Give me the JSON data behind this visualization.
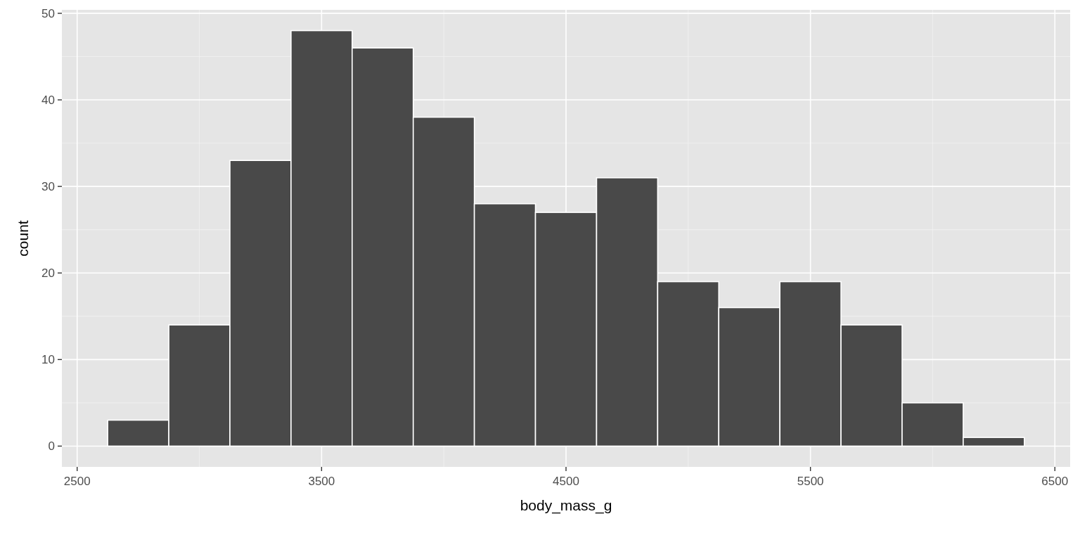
{
  "chart_data": {
    "type": "histogram",
    "xlabel": "body_mass_g",
    "ylabel": "count",
    "bins": [
      2625,
      2875,
      3125,
      3375,
      3625,
      3875,
      4125,
      4375,
      4625,
      4875,
      5125,
      5375,
      5625,
      5875,
      6125,
      6375
    ],
    "values": [
      3,
      14,
      33,
      48,
      46,
      38,
      28,
      27,
      31,
      19,
      16,
      19,
      14,
      5,
      1
    ],
    "color": "#494949",
    "xlim": [
      2437.5,
      6562.5
    ],
    "xticks": [
      2500,
      3500,
      4500,
      5500,
      6500
    ],
    "ylim": [
      -2.4,
      50.4
    ],
    "yticks": [
      0,
      10,
      20,
      30,
      40,
      50
    ],
    "grid": true
  }
}
